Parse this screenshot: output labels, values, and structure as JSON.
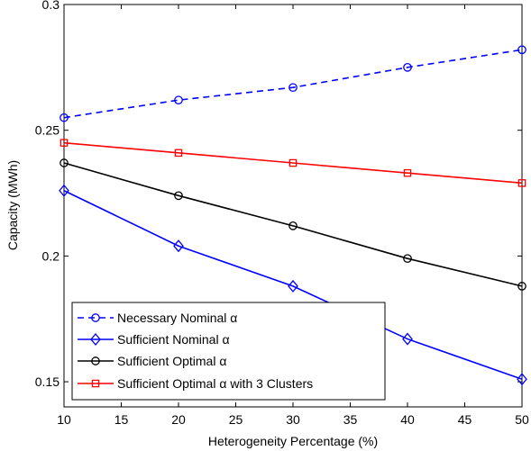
{
  "chart_data": {
    "type": "line",
    "xlabel": "Heterogeneity Percentage (%)",
    "ylabel": "Capacity (MWh)",
    "xlim": [
      10,
      50
    ],
    "ylim": [
      0.14,
      0.3
    ],
    "xticks": [
      "10",
      "15",
      "20",
      "25",
      "30",
      "35",
      "40",
      "45",
      "50"
    ],
    "yticks": [
      "0.15",
      "0.2",
      "0.25",
      "0.3"
    ],
    "grid": false,
    "legend_position": "bottom-left",
    "x": [
      10,
      20,
      30,
      40,
      50
    ],
    "series": [
      {
        "name": "Necessary Nominal α",
        "values": [
          0.255,
          0.262,
          0.267,
          0.275,
          0.282
        ],
        "color": "#0000ff",
        "line": "dashed",
        "marker": "circle"
      },
      {
        "name": "Sufficient Nominal α",
        "values": [
          0.226,
          0.204,
          0.188,
          0.167,
          0.151
        ],
        "color": "#0000ff",
        "line": "solid",
        "marker": "diamond"
      },
      {
        "name": "Sufficient Optimal α",
        "values": [
          0.237,
          0.224,
          0.212,
          0.199,
          0.188
        ],
        "color": "#000000",
        "line": "solid",
        "marker": "circle"
      },
      {
        "name": "Sufficient Optimal α with 3 Clusters",
        "values": [
          0.245,
          0.241,
          0.237,
          0.233,
          0.229
        ],
        "color": "#ff0000",
        "line": "solid",
        "marker": "square"
      }
    ]
  }
}
